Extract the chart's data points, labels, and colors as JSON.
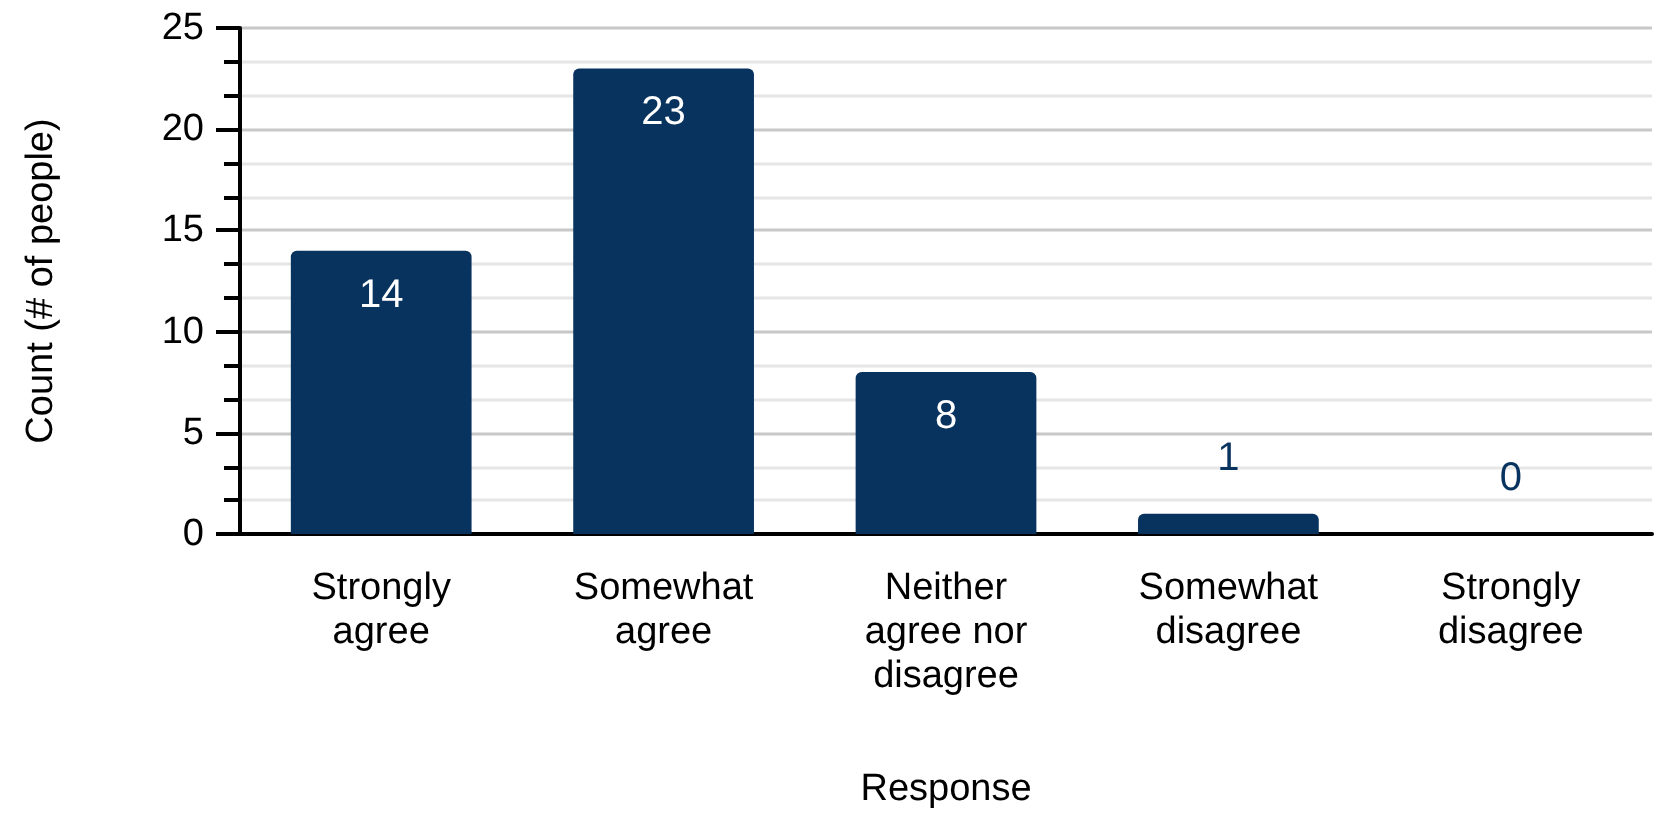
{
  "chart_data": {
    "type": "bar",
    "xlabel": "Response",
    "ylabel": "Count (# of people)",
    "categories": [
      "Strongly\nagree",
      "Somewhat\nagree",
      "Neither\nagree nor\ndisagree",
      "Somewhat\ndisagree",
      "Strongly\ndisagree"
    ],
    "values": [
      14,
      23,
      8,
      1,
      0
    ],
    "color": "#08335e",
    "ylim": [
      0,
      25
    ],
    "yticks": [
      0,
      5,
      10,
      15,
      20,
      25
    ],
    "grid": "y",
    "data_labels": true
  }
}
